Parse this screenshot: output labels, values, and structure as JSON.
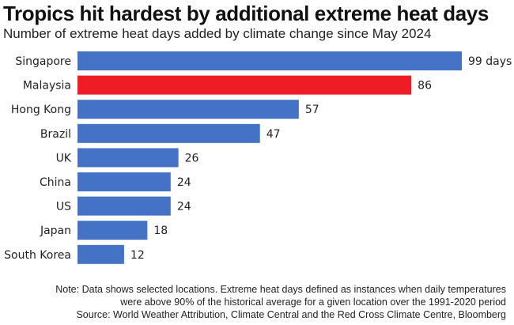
{
  "title": "Tropics hit hardest by additional extreme heat days",
  "subtitle": "Number of extreme heat days added by climate change since May 2024",
  "colors": {
    "bar": "#4472c4",
    "highlight": "#ee1c25",
    "text": "#222222"
  },
  "chart_data": {
    "type": "bar",
    "orientation": "horizontal",
    "categories": [
      "Singapore",
      "Malaysia",
      "Hong Kong",
      "Brazil",
      "UK",
      "China",
      "US",
      "Japan",
      "South Korea"
    ],
    "values": [
      99,
      86,
      57,
      47,
      26,
      24,
      24,
      18,
      12
    ],
    "data_labels": [
      "99 days",
      "86",
      "57",
      "47",
      "26",
      "24",
      "24",
      "18",
      "12"
    ],
    "highlight_category": "Malaysia",
    "xlim": [
      0,
      99
    ],
    "grid": false,
    "legend": "none"
  },
  "footer": {
    "note_line1": "Note: Data shows selected locations. Extreme heat days defined as instances when daily temperatures",
    "note_line2": "were above 90% of the historical average for a given location over the 1991-2020 period",
    "source": "Source: World Weather Attribution, Climate Central and the Red Cross Climate Centre, Bloomberg"
  }
}
